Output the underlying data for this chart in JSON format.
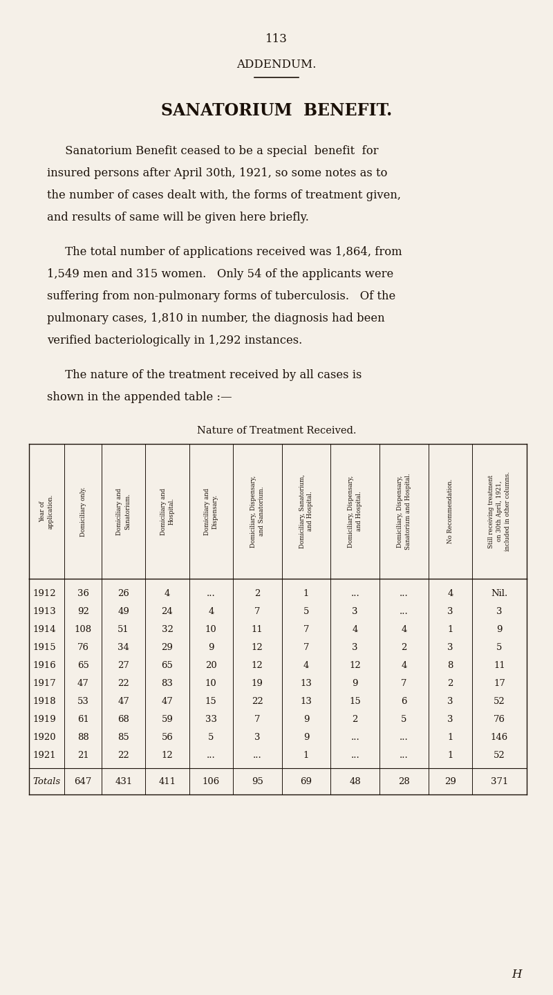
{
  "page_number": "113",
  "title1": "ADDENDUM.",
  "title2": "SANATORIUM  BENEFIT.",
  "para1_lines": [
    "     Sanatorium Benefit ceased to be a special  benefit  for",
    "insured persons after April 30th, 1921, so some notes as to",
    "the number of cases dealt with, the forms of treatment given,",
    "and results of same will be given here briefly."
  ],
  "para2_lines": [
    "     The total number of applications received was 1,864, from",
    "1,549 men and 315 women.   Only 54 of the applicants were",
    "suffering from non-pulmonary forms of tuberculosis.   Of the",
    "pulmonary cases, 1,810 in number, the diagnosis had been",
    "verified bacteriologically in 1,292 instances."
  ],
  "para3_lines": [
    "     The nature of the treatment received by all cases is",
    "shown in the appended table :—"
  ],
  "table_title": "Nature of Treatment Received.",
  "col_headers": [
    "Year of\napplication.",
    "Domiciliary only.",
    "Domiciliary and\nSanatorium.",
    "Domiciliary and\nHospital.",
    "Domiciliary and\nDispensary.",
    "Domiciliary, Dispensary,\nand Sanatorium.",
    "Domiciliary, Sanatorium,\nand Hospital.",
    "Domiciliary, Dispensary,\nand Hospital.",
    "Domiciliary, Dispensary,\nSanatorium and Hospital.",
    "No Recommendation.",
    "Still receiving treatment\non 30th April, 1921,\nincluded in other columns."
  ],
  "rows": [
    [
      "1912",
      "36",
      "26",
      "4",
      "...",
      "2",
      "1",
      "...",
      "...",
      "4",
      "Nil."
    ],
    [
      "1913",
      "92",
      "49",
      "24",
      "4",
      "7",
      "5",
      "3",
      "...",
      "3",
      "3"
    ],
    [
      "1914",
      "108",
      "51",
      "32",
      "10",
      "11",
      "7",
      "4",
      "4",
      "1",
      "9"
    ],
    [
      "1915",
      "76",
      "34",
      "29",
      "9",
      "12",
      "7",
      "3",
      "2",
      "3",
      "5"
    ],
    [
      "1916",
      "65",
      "27",
      "65",
      "20",
      "12",
      "4",
      "12",
      "4",
      "8",
      "11"
    ],
    [
      "1917",
      "47",
      "22",
      "83",
      "10",
      "19",
      "13",
      "9",
      "7",
      "2",
      "17"
    ],
    [
      "1918",
      "53",
      "47",
      "47",
      "15",
      "22",
      "13",
      "15",
      "6",
      "3",
      "52"
    ],
    [
      "1919",
      "61",
      "68",
      "59",
      "33",
      "7",
      "9",
      "2",
      "5",
      "3",
      "76"
    ],
    [
      "1920",
      "88",
      "85",
      "56",
      "5",
      "3",
      "9",
      "...",
      "...",
      "1",
      "146"
    ],
    [
      "1921",
      "21",
      "22",
      "12",
      "...",
      "...",
      "1",
      "...",
      "...",
      "1",
      "52"
    ]
  ],
  "totals": [
    "Totals",
    "647",
    "431",
    "411",
    "106",
    "95",
    "69",
    "48",
    "28",
    "29",
    "371"
  ],
  "footer": "H",
  "bg_color": "#f5f0e8",
  "text_color": "#1a1008"
}
